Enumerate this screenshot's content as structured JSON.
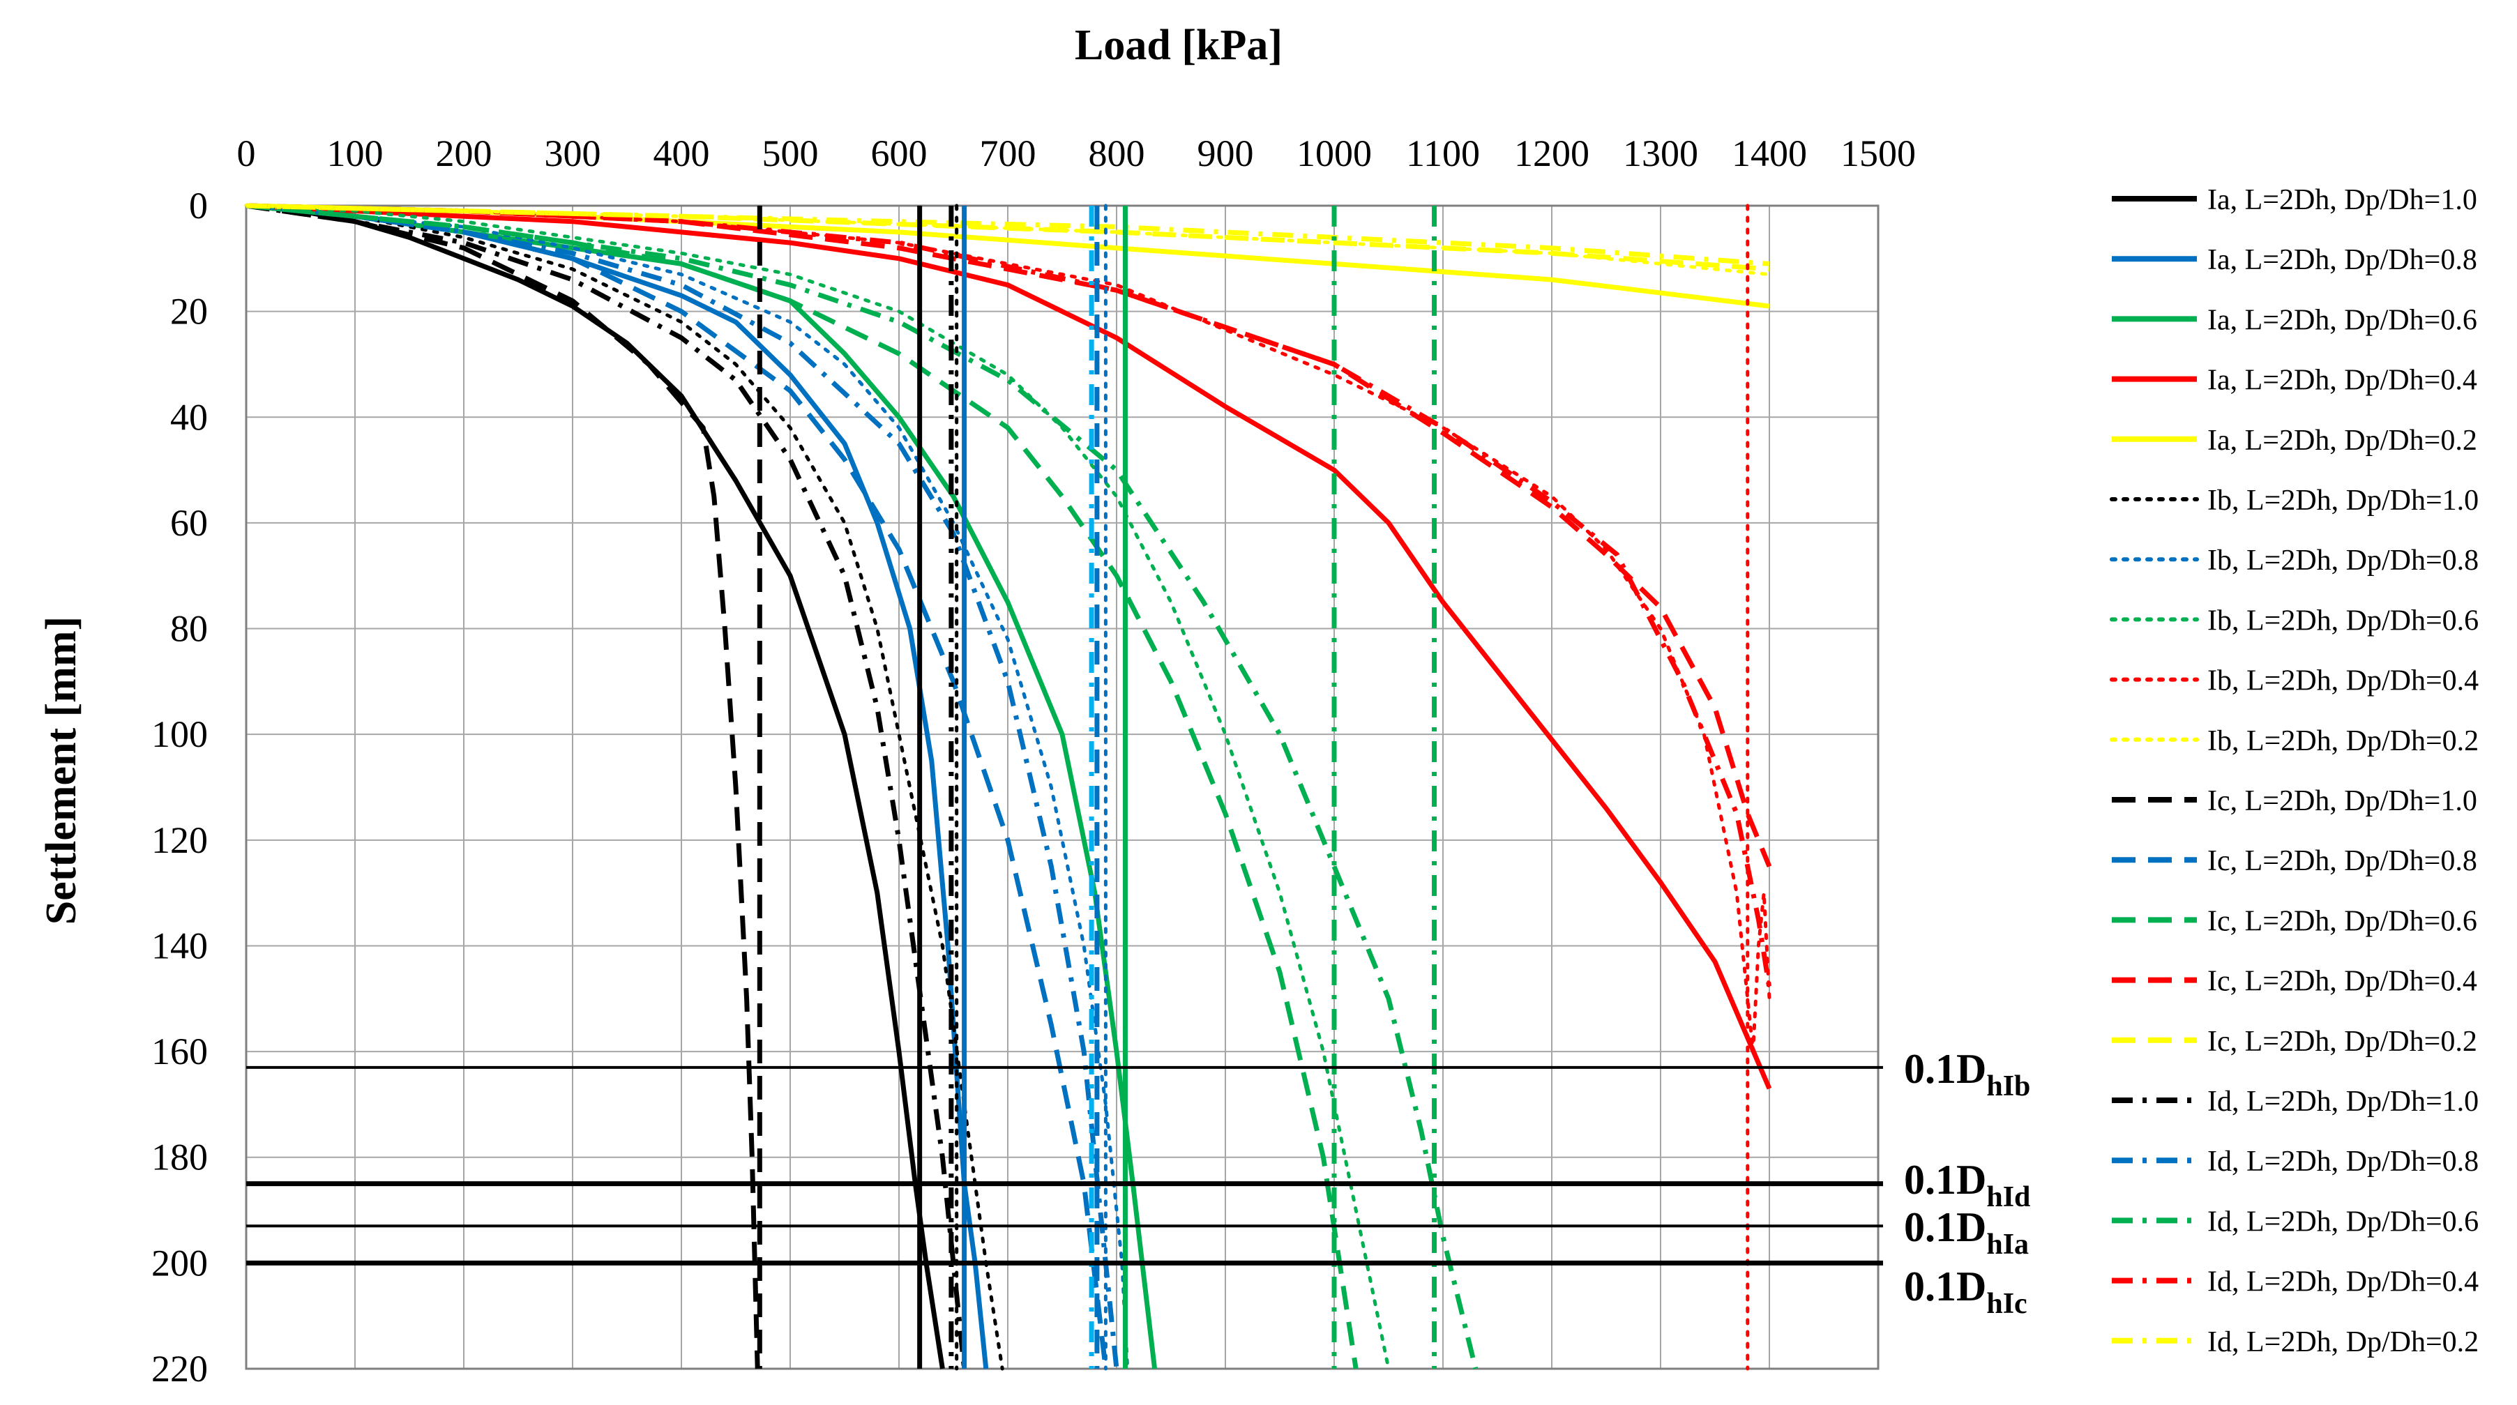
{
  "chart_data": {
    "type": "line",
    "title": "Load [kPa]",
    "xlabel": "Load [kPa]",
    "ylabel": "Settlement [mm]",
    "xlim": [
      0,
      1500
    ],
    "ylim": [
      0,
      220
    ],
    "x_ticks": [
      0,
      100,
      200,
      300,
      400,
      500,
      600,
      700,
      800,
      900,
      1000,
      1100,
      1200,
      1300,
      1400,
      1500
    ],
    "y_ticks": [
      0,
      20,
      40,
      60,
      80,
      100,
      120,
      140,
      160,
      180,
      200,
      220
    ],
    "grid": true,
    "legend_position": "right",
    "colors": {
      "1.0": "#000000",
      "0.8": "#0070c0",
      "0.6": "#00b050",
      "0.4": "#ff0000",
      "0.2": "#ffff00"
    },
    "series": [
      {
        "name": "Ia, L=2Dh, Dp/Dh=1.0",
        "color": "#000000",
        "style": "solid",
        "points": [
          [
            0,
            0
          ],
          [
            50,
            1
          ],
          [
            100,
            3
          ],
          [
            150,
            6
          ],
          [
            200,
            10
          ],
          [
            250,
            14
          ],
          [
            300,
            19
          ],
          [
            350,
            26
          ],
          [
            400,
            36
          ],
          [
            450,
            52
          ],
          [
            500,
            70
          ],
          [
            550,
            100
          ],
          [
            580,
            130
          ],
          [
            600,
            160
          ],
          [
            615,
            185
          ],
          [
            625,
            200
          ],
          [
            640,
            220
          ]
        ]
      },
      {
        "name": "Ia, L=2Dh, Dp/Dh=0.8",
        "color": "#0070c0",
        "style": "solid",
        "points": [
          [
            0,
            0
          ],
          [
            100,
            2
          ],
          [
            200,
            5
          ],
          [
            300,
            10
          ],
          [
            400,
            17
          ],
          [
            450,
            22
          ],
          [
            500,
            32
          ],
          [
            550,
            45
          ],
          [
            580,
            60
          ],
          [
            610,
            80
          ],
          [
            630,
            105
          ],
          [
            645,
            140
          ],
          [
            660,
            185
          ],
          [
            670,
            200
          ],
          [
            680,
            220
          ]
        ]
      },
      {
        "name": "Ia, L=2Dh, Dp/Dh=0.6",
        "color": "#00b050",
        "style": "solid",
        "points": [
          [
            0,
            0
          ],
          [
            100,
            2
          ],
          [
            200,
            5
          ],
          [
            300,
            8
          ],
          [
            400,
            11
          ],
          [
            500,
            18
          ],
          [
            550,
            28
          ],
          [
            600,
            40
          ],
          [
            650,
            55
          ],
          [
            700,
            75
          ],
          [
            750,
            100
          ],
          [
            780,
            130
          ],
          [
            800,
            160
          ],
          [
            815,
            185
          ],
          [
            835,
            220
          ]
        ]
      },
      {
        "name": "Ia, L=2Dh, Dp/Dh=0.4",
        "color": "#ff0000",
        "style": "solid",
        "points": [
          [
            0,
            0
          ],
          [
            100,
            1
          ],
          [
            200,
            2
          ],
          [
            300,
            3
          ],
          [
            400,
            5
          ],
          [
            500,
            7
          ],
          [
            600,
            10
          ],
          [
            700,
            15
          ],
          [
            800,
            25
          ],
          [
            900,
            38
          ],
          [
            1000,
            50
          ],
          [
            1050,
            60
          ],
          [
            1100,
            75
          ],
          [
            1150,
            88
          ],
          [
            1200,
            101
          ],
          [
            1250,
            114
          ],
          [
            1300,
            128
          ],
          [
            1350,
            143
          ],
          [
            1400,
            167
          ]
        ]
      },
      {
        "name": "Ia, L=2Dh, Dp/Dh=0.2",
        "color": "#ffff00",
        "style": "solid",
        "points": [
          [
            0,
            0
          ],
          [
            200,
            1
          ],
          [
            400,
            3
          ],
          [
            600,
            5
          ],
          [
            800,
            8
          ],
          [
            1000,
            11
          ],
          [
            1200,
            14
          ],
          [
            1400,
            19
          ]
        ]
      },
      {
        "name": "Ib, L=2Dh, Dp/Dh=1.0",
        "color": "#000000",
        "style": "dotted",
        "points": [
          [
            0,
            0
          ],
          [
            100,
            2
          ],
          [
            200,
            6
          ],
          [
            300,
            12
          ],
          [
            400,
            22
          ],
          [
            450,
            30
          ],
          [
            500,
            42
          ],
          [
            550,
            60
          ],
          [
            580,
            80
          ],
          [
            600,
            100
          ],
          [
            620,
            120
          ],
          [
            640,
            140
          ],
          [
            660,
            170
          ],
          [
            680,
            200
          ],
          [
            695,
            220
          ]
        ]
      },
      {
        "name": "Ib, L=2Dh, Dp/Dh=0.8",
        "color": "#0070c0",
        "style": "dotted",
        "points": [
          [
            0,
            0
          ],
          [
            100,
            2
          ],
          [
            200,
            4
          ],
          [
            300,
            8
          ],
          [
            400,
            13
          ],
          [
            500,
            22
          ],
          [
            550,
            30
          ],
          [
            600,
            42
          ],
          [
            650,
            60
          ],
          [
            700,
            82
          ],
          [
            740,
            110
          ],
          [
            770,
            140
          ],
          [
            790,
            170
          ],
          [
            805,
            200
          ],
          [
            810,
            220
          ]
        ]
      },
      {
        "name": "Ib, L=2Dh, Dp/Dh=0.6",
        "color": "#00b050",
        "style": "dotted",
        "points": [
          [
            0,
            0
          ],
          [
            100,
            1
          ],
          [
            200,
            3
          ],
          [
            300,
            6
          ],
          [
            400,
            9
          ],
          [
            500,
            13
          ],
          [
            600,
            20
          ],
          [
            700,
            32
          ],
          [
            750,
            42
          ],
          [
            800,
            55
          ],
          [
            850,
            75
          ],
          [
            900,
            100
          ],
          [
            950,
            130
          ],
          [
            990,
            160
          ],
          [
            1020,
            190
          ],
          [
            1050,
            220
          ]
        ]
      },
      {
        "name": "Ib, L=2Dh, Dp/Dh=0.4",
        "color": "#ff0000",
        "style": "dotted",
        "points": [
          [
            0,
            0
          ],
          [
            200,
            1
          ],
          [
            400,
            3
          ],
          [
            600,
            7
          ],
          [
            800,
            15
          ],
          [
            1000,
            32
          ],
          [
            1100,
            42
          ],
          [
            1200,
            55
          ],
          [
            1250,
            65
          ],
          [
            1300,
            80
          ],
          [
            1340,
            100
          ],
          [
            1370,
            130
          ],
          [
            1385,
            160
          ],
          [
            1390,
            140
          ],
          [
            1395,
            130
          ],
          [
            1400,
            150
          ]
        ]
      },
      {
        "name": "Ib, L=2Dh, Dp/Dh=0.2",
        "color": "#ffff00",
        "style": "dotted",
        "points": [
          [
            0,
            0
          ],
          [
            400,
            2
          ],
          [
            800,
            5
          ],
          [
            1200,
            9
          ],
          [
            1400,
            13
          ]
        ]
      },
      {
        "name": "Ic, L=2Dh, Dp/Dh=1.0",
        "color": "#000000",
        "style": "dashed",
        "points": [
          [
            0,
            0
          ],
          [
            100,
            3
          ],
          [
            200,
            8
          ],
          [
            300,
            18
          ],
          [
            370,
            30
          ],
          [
            420,
            42
          ],
          [
            430,
            55
          ],
          [
            440,
            80
          ],
          [
            450,
            110
          ],
          [
            460,
            150
          ],
          [
            465,
            180
          ],
          [
            470,
            220
          ]
        ]
      },
      {
        "name": "Ic, L=2Dh, Dp/Dh=0.8",
        "color": "#0070c0",
        "style": "dashed",
        "points": [
          [
            0,
            0
          ],
          [
            100,
            2
          ],
          [
            200,
            5
          ],
          [
            300,
            10
          ],
          [
            400,
            20
          ],
          [
            500,
            35
          ],
          [
            550,
            48
          ],
          [
            600,
            65
          ],
          [
            650,
            90
          ],
          [
            700,
            120
          ],
          [
            740,
            155
          ],
          [
            770,
            185
          ],
          [
            790,
            220
          ]
        ]
      },
      {
        "name": "Ic, L=2Dh, Dp/Dh=0.6",
        "color": "#00b050",
        "style": "dashed",
        "points": [
          [
            0,
            0
          ],
          [
            100,
            2
          ],
          [
            200,
            4
          ],
          [
            300,
            7
          ],
          [
            400,
            11
          ],
          [
            500,
            18
          ],
          [
            600,
            28
          ],
          [
            700,
            42
          ],
          [
            750,
            55
          ],
          [
            800,
            70
          ],
          [
            850,
            90
          ],
          [
            900,
            115
          ],
          [
            950,
            145
          ],
          [
            990,
            180
          ],
          [
            1020,
            220
          ]
        ]
      },
      {
        "name": "Ic, L=2Dh, Dp/Dh=0.4",
        "color": "#ff0000",
        "style": "dashed",
        "points": [
          [
            0,
            0
          ],
          [
            200,
            1
          ],
          [
            400,
            3
          ],
          [
            600,
            8
          ],
          [
            800,
            16
          ],
          [
            1000,
            30
          ],
          [
            1100,
            43
          ],
          [
            1200,
            57
          ],
          [
            1250,
            66
          ],
          [
            1300,
            76
          ],
          [
            1350,
            95
          ],
          [
            1380,
            115
          ],
          [
            1400,
            125
          ]
        ]
      },
      {
        "name": "Ic, L=2Dh, Dp/Dh=0.2",
        "color": "#ffff00",
        "style": "dashed",
        "points": [
          [
            0,
            0
          ],
          [
            400,
            2
          ],
          [
            800,
            5
          ],
          [
            1200,
            9
          ],
          [
            1400,
            12
          ]
        ]
      },
      {
        "name": "Id, L=2Dh, Dp/Dh=1.0",
        "color": "#000000",
        "style": "dashdot",
        "points": [
          [
            0,
            0
          ],
          [
            100,
            3
          ],
          [
            200,
            7
          ],
          [
            300,
            14
          ],
          [
            400,
            25
          ],
          [
            450,
            33
          ],
          [
            500,
            48
          ],
          [
            550,
            70
          ],
          [
            580,
            95
          ],
          [
            600,
            120
          ],
          [
            620,
            150
          ],
          [
            640,
            180
          ],
          [
            660,
            220
          ]
        ]
      },
      {
        "name": "Id, L=2Dh, Dp/Dh=0.8",
        "color": "#0070c0",
        "style": "dashdot",
        "points": [
          [
            0,
            0
          ],
          [
            100,
            2
          ],
          [
            200,
            5
          ],
          [
            300,
            9
          ],
          [
            400,
            15
          ],
          [
            500,
            26
          ],
          [
            600,
            45
          ],
          [
            650,
            62
          ],
          [
            700,
            90
          ],
          [
            740,
            125
          ],
          [
            770,
            160
          ],
          [
            790,
            200
          ],
          [
            800,
            220
          ]
        ]
      },
      {
        "name": "Id, L=2Dh, Dp/Dh=0.6",
        "color": "#00b050",
        "style": "dashdot",
        "points": [
          [
            0,
            0
          ],
          [
            100,
            2
          ],
          [
            200,
            4
          ],
          [
            300,
            7
          ],
          [
            400,
            10
          ],
          [
            500,
            15
          ],
          [
            600,
            22
          ],
          [
            700,
            33
          ],
          [
            800,
            50
          ],
          [
            880,
            75
          ],
          [
            950,
            100
          ],
          [
            1000,
            125
          ],
          [
            1050,
            150
          ],
          [
            1080,
            175
          ],
          [
            1100,
            195
          ],
          [
            1130,
            220
          ]
        ]
      },
      {
        "name": "Id, L=2Dh, Dp/Dh=0.4",
        "color": "#ff0000",
        "style": "dashdot",
        "points": [
          [
            0,
            0
          ],
          [
            200,
            1
          ],
          [
            400,
            3
          ],
          [
            600,
            7
          ],
          [
            800,
            16
          ],
          [
            1000,
            30
          ],
          [
            1100,
            42
          ],
          [
            1200,
            56
          ],
          [
            1260,
            66
          ],
          [
            1320,
            90
          ],
          [
            1370,
            115
          ],
          [
            1390,
            135
          ],
          [
            1400,
            148
          ]
        ]
      },
      {
        "name": "Id, L=2Dh, Dp/Dh=0.2",
        "color": "#ffff00",
        "style": "dashdot",
        "points": [
          [
            0,
            0
          ],
          [
            400,
            2
          ],
          [
            800,
            4
          ],
          [
            1200,
            8
          ],
          [
            1400,
            11
          ]
        ]
      }
    ],
    "vertical_lines": [
      {
        "x": 472,
        "color": "#000000",
        "style": "dashed"
      },
      {
        "x": 619,
        "color": "#000000",
        "style": "solid"
      },
      {
        "x": 648,
        "color": "#000000",
        "style": "dashdot"
      },
      {
        "x": 653,
        "color": "#000000",
        "style": "dotted"
      },
      {
        "x": 660,
        "color": "#0070c0",
        "style": "solid"
      },
      {
        "x": 777,
        "color": "#00b0f0",
        "style": "dashdot"
      },
      {
        "x": 782,
        "color": "#0070c0",
        "style": "dashed"
      },
      {
        "x": 790,
        "color": "#0070c0",
        "style": "dotted"
      },
      {
        "x": 808,
        "color": "#00b050",
        "style": "solid"
      },
      {
        "x": 1000,
        "color": "#00b050",
        "style": "dashdot"
      },
      {
        "x": 1092,
        "color": "#00b050",
        "style": "dashdot"
      },
      {
        "x": 1380,
        "color": "#ff0000",
        "style": "dotted"
      }
    ],
    "reference_lines": [
      {
        "y": 163,
        "label_main": "0.1D",
        "label_sub": "hIb",
        "weight": "thin"
      },
      {
        "y": 185,
        "label_main": "0.1D",
        "label_sub": "hId",
        "weight": "thick"
      },
      {
        "y": 193,
        "label_main": "0.1D",
        "label_sub": "hIa",
        "weight": "thin"
      },
      {
        "y": 200,
        "label_main": "0.1D",
        "label_sub": "hIc",
        "weight": "thick"
      }
    ]
  }
}
